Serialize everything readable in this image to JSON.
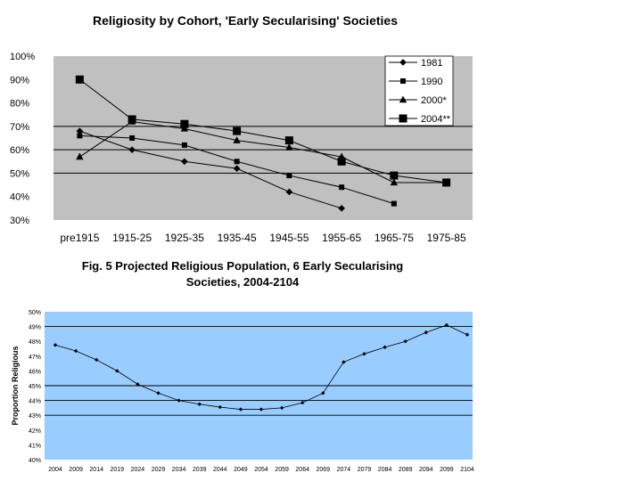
{
  "chart_data": [
    {
      "type": "line",
      "title": "Religiosity by Cohort, 'Early Secularising' Societies",
      "xlabel": "",
      "ylabel": "",
      "categories": [
        "pre1915",
        "1915-25",
        "1925-35",
        "1935-45",
        "1945-55",
        "1955-65",
        "1965-75",
        "1975-85"
      ],
      "y_tick_labels": [
        "30%",
        "40%",
        "50%",
        "60%",
        "70%",
        "80%",
        "90%",
        "100%"
      ],
      "ylim": [
        30,
        100
      ],
      "gridlines": [
        50,
        60,
        70
      ],
      "legend_position": "top-right",
      "background": "#c0c0c0",
      "series": [
        {
          "name": "1981",
          "marker": "diamond",
          "values": [
            68,
            60,
            55,
            52,
            42,
            35,
            null,
            null
          ]
        },
        {
          "name": "1990",
          "marker": "small-square",
          "values": [
            66,
            65,
            62,
            55,
            49,
            44,
            37,
            null
          ]
        },
        {
          "name": "2000*",
          "marker": "triangle",
          "values": [
            57,
            72,
            69,
            64,
            61,
            57,
            46,
            46
          ]
        },
        {
          "name": "2004**",
          "marker": "large-square",
          "values": [
            90,
            73,
            71,
            68,
            64,
            55,
            49,
            46
          ]
        }
      ]
    },
    {
      "type": "line",
      "title": "Fig. 5 Projected Religious Population, 6 Early Secularising Societies, 2004-2104",
      "xlabel": "",
      "ylabel": "Proportion Religious",
      "categories": [
        "2004",
        "2009",
        "2014",
        "2019",
        "2024",
        "2029",
        "2034",
        "2039",
        "2044",
        "2049",
        "2054",
        "2059",
        "2064",
        "2069",
        "2074",
        "2079",
        "2084",
        "2089",
        "2094",
        "2099",
        "2104"
      ],
      "x_tick_labels": [
        "2004",
        "2009",
        "2014",
        "2019",
        "2024",
        "2029",
        "2034",
        "2039",
        "2044",
        "2049",
        "2054",
        "2059",
        "2064",
        "2069",
        "2074",
        "2079",
        "2084",
        "2089",
        "2094",
        "2099",
        "2104"
      ],
      "y_tick_labels": [
        "40%",
        "41%",
        "42%",
        "43%",
        "44%",
        "45%",
        "46%",
        "47%",
        "48%",
        "49%",
        "50%"
      ],
      "ylim": [
        40,
        50
      ],
      "gridlines": [
        43,
        44,
        45,
        49
      ],
      "background": "#99ccff",
      "series": [
        {
          "values": [
            47.75,
            47.35,
            46.75,
            46.0,
            45.1,
            44.5,
            44.0,
            43.75,
            43.55,
            43.4,
            43.4,
            43.5,
            43.85,
            44.5,
            46.6,
            47.15,
            47.6,
            48.0,
            48.6,
            49.1,
            48.45
          ]
        }
      ]
    }
  ]
}
